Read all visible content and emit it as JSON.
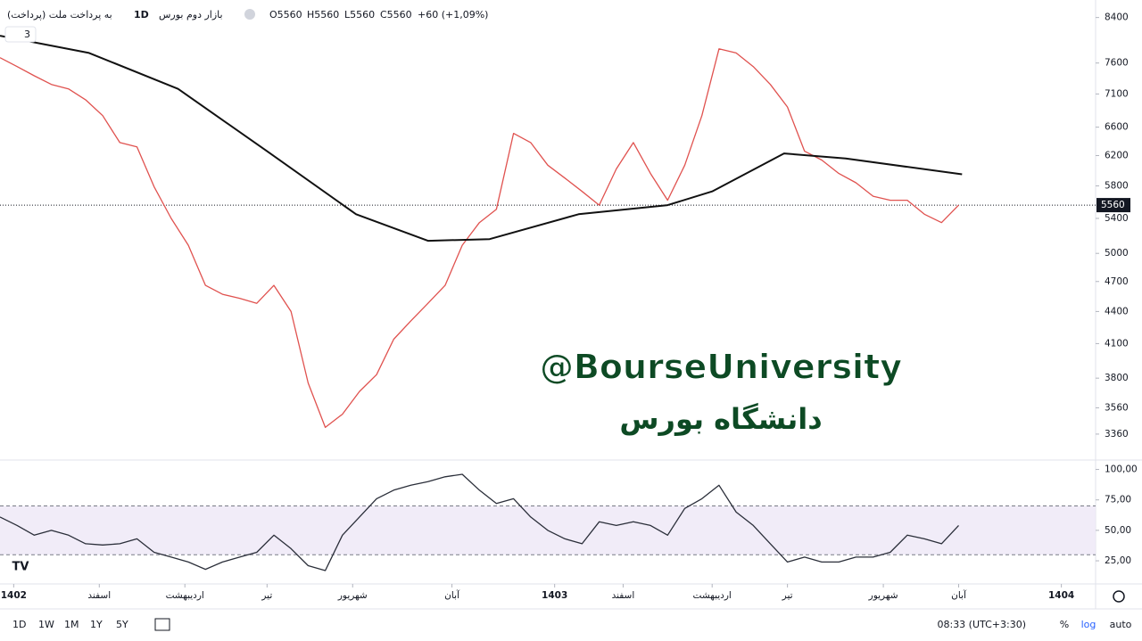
{
  "header": {
    "symbol": "به پرداخت ملت (پرداخت)",
    "interval": "1D",
    "exchange": "بازار دوم بورس",
    "open": "O5560",
    "high": "H5560",
    "low": "L5560",
    "close": "C5560",
    "change": "+60 (+1,09%)",
    "indicators": "3"
  },
  "watermark": {
    "handle": "@BourseUniversity",
    "name": "دانشگاه بورس"
  },
  "toolbar": {
    "ranges": [
      "1D",
      "1W",
      "1M",
      "1Y",
      "5Y"
    ],
    "time": "08:33 (UTC+3:30)",
    "percent": "%",
    "log": "log",
    "auto": "auto"
  },
  "chart_data": [
    {
      "type": "line",
      "log_scale": true,
      "grid": false,
      "xlim": [
        0,
        320
      ],
      "ylim": [
        3180,
        8730
      ],
      "yticks": [
        3360,
        3560,
        3800,
        4100,
        4400,
        4700,
        5000,
        5400,
        5800,
        6200,
        6600,
        7100,
        7600,
        8400
      ],
      "price_line": 5560,
      "series": [
        {
          "color": "#e0524f",
          "x": [
            0,
            5,
            10,
            15,
            20,
            25,
            30,
            35,
            40,
            45,
            50,
            55,
            60,
            65,
            70,
            75,
            80,
            85,
            90,
            95,
            100,
            105,
            110,
            115,
            120,
            125,
            130,
            135,
            140,
            145,
            150,
            155,
            160,
            165,
            170,
            175,
            180,
            185,
            190,
            195,
            200,
            205,
            210,
            215,
            220,
            225,
            230,
            235,
            240,
            245,
            250,
            255,
            260,
            265,
            270,
            275,
            280
          ],
          "values": [
            7690,
            7540,
            7390,
            7250,
            7180,
            7010,
            6770,
            6380,
            6320,
            5790,
            5400,
            5090,
            4660,
            4570,
            4530,
            4480,
            4660,
            4400,
            3760,
            3410,
            3510,
            3690,
            3830,
            4140,
            4310,
            4480,
            4660,
            5090,
            5350,
            5510,
            6510,
            6380,
            6070,
            5900,
            5730,
            5560,
            6020,
            6380,
            5960,
            5620,
            6070,
            6770,
            7840,
            7770,
            7540,
            7250,
            6900,
            6260,
            6140,
            5960,
            5840,
            5670,
            5620,
            5620,
            5450,
            5350,
            5560
          ]
        },
        {
          "color": "#111111",
          "x": [
            0,
            26,
            52,
            78,
            104,
            125,
            143,
            169,
            195,
            208,
            229,
            247,
            281
          ],
          "values": [
            8070,
            7770,
            7180,
            6260,
            5450,
            5140,
            5160,
            5450,
            5560,
            5730,
            6230,
            6160,
            5950
          ]
        }
      ]
    },
    {
      "type": "line",
      "grid": false,
      "xlim": [
        0,
        320
      ],
      "ylim": [
        6,
        107
      ],
      "yticks": [
        {
          "value": 25,
          "label": "25,00"
        },
        {
          "value": 50,
          "label": "50,00"
        },
        {
          "value": 75,
          "label": "75,00"
        },
        {
          "value": 100,
          "label": "100,00"
        }
      ],
      "band": [
        30,
        70
      ],
      "xticks": [
        {
          "value": 4,
          "label": "1402"
        },
        {
          "value": 29,
          "label": "اسفند"
        },
        {
          "value": 54,
          "label": "اردیبهشت"
        },
        {
          "value": 78,
          "label": "تیر"
        },
        {
          "value": 103,
          "label": "شهریور"
        },
        {
          "value": 132,
          "label": "آبان"
        },
        {
          "value": 162,
          "label": "1403"
        },
        {
          "value": 182,
          "label": "اسفند"
        },
        {
          "value": 208,
          "label": "اردیبهشت"
        },
        {
          "value": 230,
          "label": "تیر"
        },
        {
          "value": 258,
          "label": "شهریور"
        },
        {
          "value": 280,
          "label": "آبان"
        },
        {
          "value": 310,
          "label": "1404"
        }
      ],
      "series": [
        {
          "color": "#2a2e39",
          "x": [
            0,
            5,
            10,
            15,
            20,
            25,
            30,
            35,
            40,
            45,
            50,
            55,
            60,
            65,
            70,
            75,
            80,
            85,
            90,
            95,
            100,
            105,
            110,
            115,
            120,
            125,
            130,
            135,
            140,
            145,
            150,
            155,
            160,
            165,
            170,
            175,
            180,
            185,
            190,
            195,
            200,
            205,
            210,
            215,
            220,
            225,
            230,
            235,
            240,
            245,
            250,
            255,
            260,
            265,
            270,
            275,
            280
          ],
          "values": [
            61,
            54,
            46,
            50,
            46,
            39,
            38,
            39,
            43,
            32,
            28,
            24,
            18,
            24,
            28,
            32,
            46,
            35,
            21,
            17,
            46,
            61,
            76,
            83,
            87,
            90,
            94,
            96,
            83,
            72,
            76,
            61,
            50,
            43,
            39,
            57,
            54,
            57,
            54,
            46,
            68,
            76,
            87,
            65,
            54,
            39,
            24,
            28,
            24,
            24,
            28,
            28,
            32,
            46,
            43,
            39,
            54
          ]
        }
      ]
    }
  ]
}
